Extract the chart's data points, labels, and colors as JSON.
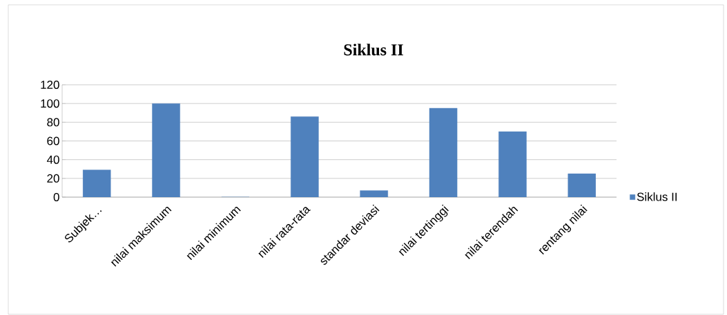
{
  "chart_data": {
    "type": "bar",
    "title": "Siklus II",
    "categories": [
      "Subjek…",
      "nilai maksimum",
      "nilai minimum",
      "nilai rata-rata",
      "standar deviasi",
      "nilai tertinggi",
      "nilai terendah",
      "rentang nilai"
    ],
    "series": [
      {
        "name": "Siklus II",
        "color": "#4f81bd",
        "values": [
          29,
          100,
          0,
          86,
          7,
          95,
          70,
          25
        ]
      }
    ],
    "ylim": [
      0,
      120
    ],
    "yticks": [
      0,
      20,
      40,
      60,
      80,
      100,
      120
    ],
    "grid": "y",
    "legend": "right"
  }
}
